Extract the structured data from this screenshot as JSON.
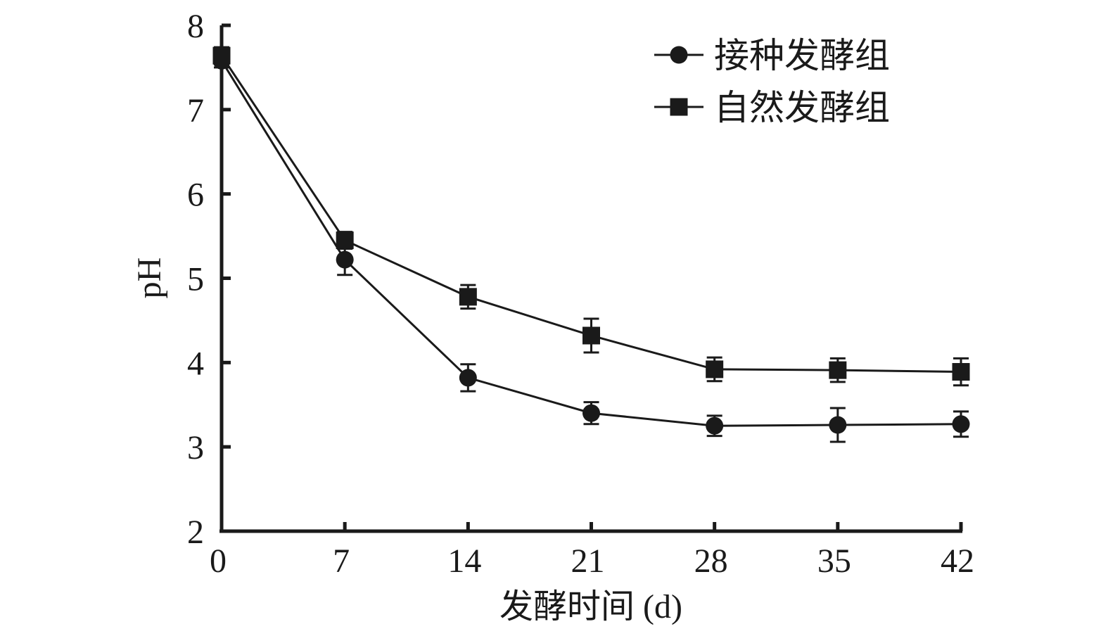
{
  "chart_data": {
    "type": "line",
    "xlabel": "发酵时间 (d)",
    "ylabel": "pH",
    "x": [
      0,
      7,
      14,
      21,
      28,
      35,
      42
    ],
    "xlim": [
      0,
      42
    ],
    "ylim": [
      2,
      8
    ],
    "xticks": [
      "0",
      "7",
      "14",
      "21",
      "28",
      "35",
      "42"
    ],
    "yticks": [
      "2",
      "3",
      "4",
      "5",
      "6",
      "7",
      "8"
    ],
    "grid": false,
    "legend_position": "top-right",
    "series": [
      {
        "name": "接种发酵组",
        "marker": "circle",
        "values": [
          7.58,
          5.22,
          3.82,
          3.4,
          3.25,
          3.26,
          3.27
        ],
        "errors": [
          0.08,
          0.18,
          0.16,
          0.13,
          0.12,
          0.2,
          0.15
        ]
      },
      {
        "name": "自然发酵组",
        "marker": "square",
        "values": [
          7.64,
          5.45,
          4.78,
          4.32,
          3.92,
          3.91,
          3.89
        ],
        "errors": [
          0.1,
          0.1,
          0.14,
          0.2,
          0.14,
          0.14,
          0.16
        ]
      }
    ]
  }
}
